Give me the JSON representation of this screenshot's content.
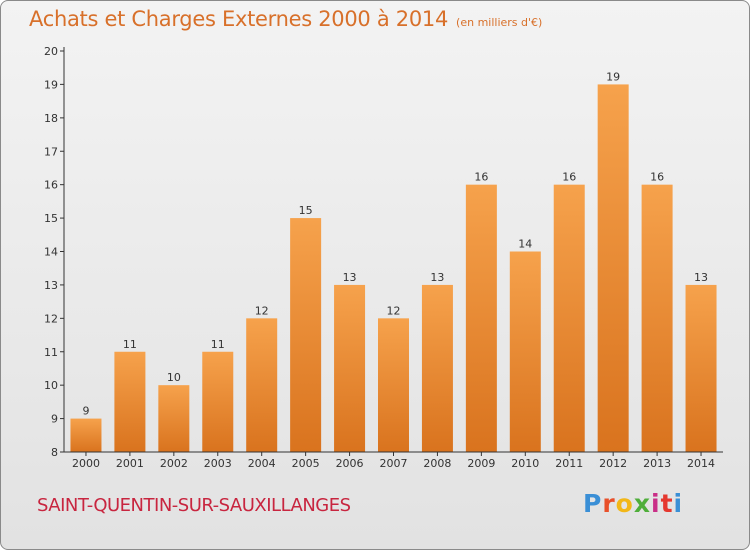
{
  "header": {
    "title": "Achats et Charges Externes 2000 à 2014",
    "unit": "(en milliers d'€)"
  },
  "footer": {
    "commune": "SAINT-QUENTIN-SUR-SAUXILLANGES",
    "brand": "Proxiti",
    "brand_colors": [
      "#3a8fd6",
      "#e8502a",
      "#f2b718",
      "#4fae3a",
      "#c92f87",
      "#e5382f",
      "#3a8fd6"
    ]
  },
  "colors": {
    "bar_top": "#f6a24c",
    "bar_bottom": "#d9731e",
    "axis": "#333333",
    "text": "#333333"
  },
  "chart_data": {
    "type": "bar",
    "categories": [
      "2000",
      "2001",
      "2002",
      "2003",
      "2004",
      "2005",
      "2006",
      "2007",
      "2008",
      "2009",
      "2010",
      "2011",
      "2012",
      "2013",
      "2014"
    ],
    "values": [
      9,
      11,
      10,
      11,
      12,
      15,
      13,
      12,
      13,
      16,
      14,
      16,
      19,
      16,
      13
    ],
    "data_labels": [
      "9",
      "11",
      "10",
      "11",
      "12",
      "15",
      "13",
      "12",
      "13",
      "16",
      "14",
      "16",
      "19",
      "16",
      "13"
    ],
    "yticks": [
      8,
      9,
      10,
      11,
      12,
      13,
      14,
      15,
      16,
      17,
      18,
      19,
      20
    ],
    "ylim": [
      8,
      20
    ],
    "grid": false
  }
}
